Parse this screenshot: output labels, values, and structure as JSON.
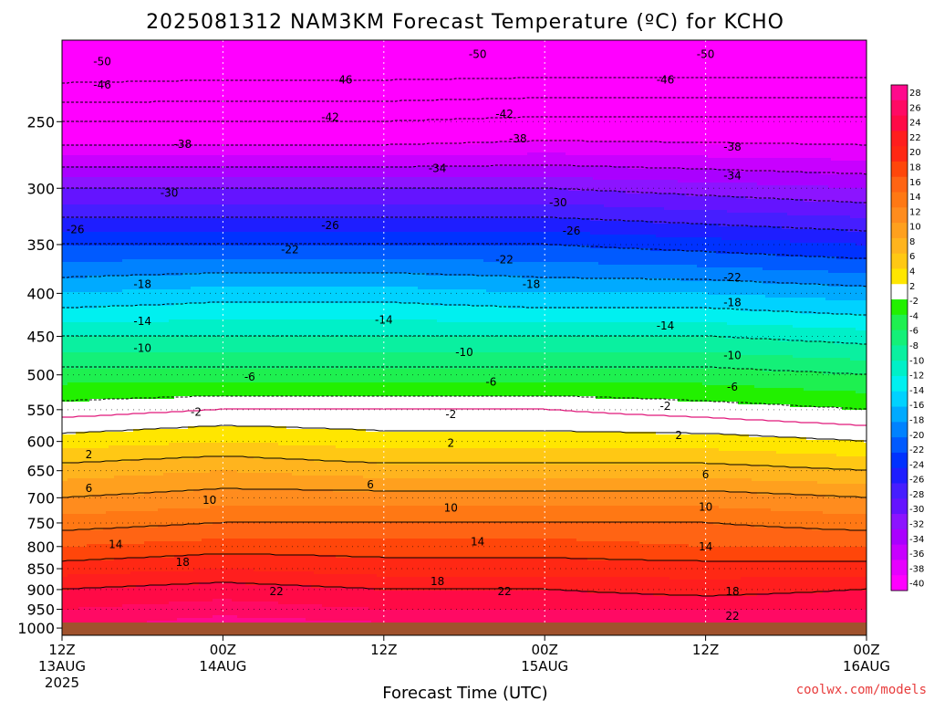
{
  "chart_data": {
    "type": "heatmap",
    "title": "2025081312 NAM3KM Forecast Temperature (ºC) for KCHO",
    "xlabel": "Forecast Time (UTC)",
    "credit": "coolwx.com/models",
    "credit_color": "#e83c3c",
    "y_ticks": [
      "250",
      "300",
      "350",
      "400",
      "450",
      "500",
      "550",
      "600",
      "650",
      "700",
      "750",
      "800",
      "850",
      "900",
      "950",
      "1000"
    ],
    "y_tick_values": [
      250,
      300,
      350,
      400,
      450,
      500,
      550,
      600,
      650,
      700,
      750,
      800,
      850,
      900,
      950,
      1000
    ],
    "ylim": [
      200,
      1020
    ],
    "yscale": "log",
    "xlim": [
      0,
      60
    ],
    "x_ticks": [
      {
        "hour": 0,
        "label": "12Z",
        "label2": "13AUG",
        "label3": "2025"
      },
      {
        "hour": 12,
        "label": "00Z",
        "label2": "14AUG",
        "label3": ""
      },
      {
        "hour": 24,
        "label": "12Z",
        "label2": "",
        "label3": ""
      },
      {
        "hour": 36,
        "label": "00Z",
        "label2": "15AUG",
        "label3": ""
      },
      {
        "hour": 48,
        "label": "12Z",
        "label2": "",
        "label3": ""
      },
      {
        "hour": 60,
        "label": "00Z",
        "label2": "16AUG",
        "label3": ""
      }
    ],
    "colorbar_labels": [
      "28",
      "26",
      "24",
      "22",
      "20",
      "18",
      "16",
      "14",
      "12",
      "10",
      "8",
      "6",
      "4",
      "2",
      "-2",
      "-4",
      "-6",
      "-8",
      "-10",
      "-12",
      "-14",
      "-16",
      "-18",
      "-20",
      "-22",
      "-24",
      "-26",
      "-28",
      "-30",
      "-32",
      "-34",
      "-36",
      "-38",
      "-40"
    ],
    "colorbar_colors": [
      "#ff0a8c",
      "#ff0a64",
      "#ff0a46",
      "#ff1e1e",
      "#ff2814",
      "#ff460a",
      "#ff6414",
      "#ff7814",
      "#ff8c1e",
      "#ffa01e",
      "#ffb41e",
      "#ffc814",
      "#ffe600",
      "#ffffff",
      "#22f000",
      "#1ef050",
      "#14f078",
      "#0af0a0",
      "#00f0c8",
      "#00f0f0",
      "#00d2ff",
      "#00aaff",
      "#0082ff",
      "#005aff",
      "#0032ff",
      "#1e1eff",
      "#461eff",
      "#6414ff",
      "#8c14ff",
      "#aa00ff",
      "#c800ff",
      "#e600ff",
      "#ff00ff"
    ],
    "surface_pressure": 985,
    "surface_color": "#a0522d",
    "profiles": [
      {
        "hour": 0,
        "points": [
          [
            200,
            -58
          ],
          [
            250,
            -42
          ],
          [
            300,
            -30
          ],
          [
            350,
            -22
          ],
          [
            400,
            -16
          ],
          [
            450,
            -10
          ],
          [
            500,
            -5
          ],
          [
            550,
            -1
          ],
          [
            600,
            3
          ],
          [
            650,
            7
          ],
          [
            700,
            10
          ],
          [
            750,
            13
          ],
          [
            800,
            16
          ],
          [
            850,
            19
          ],
          [
            900,
            22
          ],
          [
            950,
            24
          ],
          [
            985,
            25
          ]
        ]
      },
      {
        "hour": 12,
        "points": [
          [
            200,
            -57
          ],
          [
            250,
            -42
          ],
          [
            300,
            -30
          ],
          [
            350,
            -22
          ],
          [
            400,
            -15
          ],
          [
            450,
            -10
          ],
          [
            500,
            -5
          ],
          [
            550,
            0
          ],
          [
            600,
            4
          ],
          [
            650,
            8
          ],
          [
            700,
            11
          ],
          [
            750,
            14
          ],
          [
            800,
            17
          ],
          [
            850,
            20
          ],
          [
            900,
            23
          ],
          [
            950,
            25
          ],
          [
            985,
            27
          ]
        ]
      },
      {
        "hour": 24,
        "points": [
          [
            200,
            -57
          ],
          [
            250,
            -42
          ],
          [
            300,
            -30
          ],
          [
            350,
            -22
          ],
          [
            400,
            -15
          ],
          [
            450,
            -10
          ],
          [
            500,
            -5
          ],
          [
            550,
            0
          ],
          [
            600,
            3
          ],
          [
            650,
            7
          ],
          [
            700,
            11
          ],
          [
            750,
            14
          ],
          [
            800,
            17
          ],
          [
            850,
            19
          ],
          [
            900,
            22
          ],
          [
            950,
            24
          ],
          [
            985,
            26
          ]
        ]
      },
      {
        "hour": 36,
        "points": [
          [
            200,
            -57
          ],
          [
            250,
            -41
          ],
          [
            300,
            -30
          ],
          [
            350,
            -22
          ],
          [
            400,
            -16
          ],
          [
            450,
            -10
          ],
          [
            500,
            -5
          ],
          [
            550,
            0
          ],
          [
            600,
            3
          ],
          [
            650,
            7
          ],
          [
            700,
            11
          ],
          [
            750,
            14
          ],
          [
            800,
            17
          ],
          [
            850,
            19
          ],
          [
            900,
            22
          ],
          [
            950,
            24
          ],
          [
            985,
            26
          ]
        ]
      },
      {
        "hour": 48,
        "points": [
          [
            200,
            -57
          ],
          [
            250,
            -41
          ],
          [
            300,
            -31
          ],
          [
            350,
            -23
          ],
          [
            400,
            -16
          ],
          [
            450,
            -10
          ],
          [
            500,
            -5
          ],
          [
            550,
            -1
          ],
          [
            600,
            3
          ],
          [
            650,
            7
          ],
          [
            700,
            11
          ],
          [
            750,
            14
          ],
          [
            800,
            16
          ],
          [
            850,
            19
          ],
          [
            900,
            21
          ],
          [
            950,
            24
          ],
          [
            985,
            26
          ]
        ]
      },
      {
        "hour": 60,
        "points": [
          [
            200,
            -57
          ],
          [
            250,
            -41
          ],
          [
            300,
            -32
          ],
          [
            350,
            -24
          ],
          [
            400,
            -17
          ],
          [
            450,
            -11
          ],
          [
            500,
            -6
          ],
          [
            550,
            -2
          ],
          [
            600,
            2
          ],
          [
            650,
            6
          ],
          [
            700,
            10
          ],
          [
            750,
            13
          ],
          [
            800,
            16
          ],
          [
            850,
            19
          ],
          [
            900,
            22
          ],
          [
            950,
            24
          ],
          [
            985,
            26
          ]
        ]
      }
    ],
    "contour_labels": [
      {
        "text": "-50",
        "hour": 3,
        "p": 212
      },
      {
        "text": "-50",
        "hour": 31,
        "p": 208
      },
      {
        "text": "-50",
        "hour": 48,
        "p": 208
      },
      {
        "text": "-46",
        "hour": 3,
        "p": 226
      },
      {
        "text": "-46",
        "hour": 21,
        "p": 223
      },
      {
        "text": "-46",
        "hour": 45,
        "p": 223
      },
      {
        "text": "-42",
        "hour": 20,
        "p": 247
      },
      {
        "text": "-42",
        "hour": 33,
        "p": 245
      },
      {
        "text": "-38",
        "hour": 9,
        "p": 266
      },
      {
        "text": "-38",
        "hour": 34,
        "p": 262
      },
      {
        "text": "-38",
        "hour": 50,
        "p": 268
      },
      {
        "text": "-34",
        "hour": 28,
        "p": 284
      },
      {
        "text": "-34",
        "hour": 50,
        "p": 290
      },
      {
        "text": "-30",
        "hour": 8,
        "p": 304
      },
      {
        "text": "-30",
        "hour": 37,
        "p": 312
      },
      {
        "text": "-26",
        "hour": 1,
        "p": 336
      },
      {
        "text": "-26",
        "hour": 20,
        "p": 332
      },
      {
        "text": "-26",
        "hour": 38,
        "p": 337
      },
      {
        "text": "-22",
        "hour": 17,
        "p": 355
      },
      {
        "text": "-22",
        "hour": 33,
        "p": 365
      },
      {
        "text": "-22",
        "hour": 50,
        "p": 383
      },
      {
        "text": "-18",
        "hour": 6,
        "p": 390
      },
      {
        "text": "-18",
        "hour": 35,
        "p": 390
      },
      {
        "text": "-18",
        "hour": 50,
        "p": 410
      },
      {
        "text": "-14",
        "hour": 6,
        "p": 432
      },
      {
        "text": "-14",
        "hour": 24,
        "p": 430
      },
      {
        "text": "-14",
        "hour": 45,
        "p": 437
      },
      {
        "text": "-10",
        "hour": 6,
        "p": 465
      },
      {
        "text": "-10",
        "hour": 30,
        "p": 470
      },
      {
        "text": "-10",
        "hour": 50,
        "p": 474
      },
      {
        "text": "-6",
        "hour": 14,
        "p": 503
      },
      {
        "text": "-6",
        "hour": 32,
        "p": 510
      },
      {
        "text": "-6",
        "hour": 50,
        "p": 517
      },
      {
        "text": "-2",
        "hour": 10,
        "p": 554
      },
      {
        "text": "-2",
        "hour": 29,
        "p": 557
      },
      {
        "text": "-2",
        "hour": 45,
        "p": 545
      },
      {
        "text": "2",
        "hour": 2,
        "p": 622
      },
      {
        "text": "2",
        "hour": 29,
        "p": 603
      },
      {
        "text": "2",
        "hour": 46,
        "p": 590
      },
      {
        "text": "6",
        "hour": 2,
        "p": 682
      },
      {
        "text": "6",
        "hour": 23,
        "p": 675
      },
      {
        "text": "6",
        "hour": 48,
        "p": 657
      },
      {
        "text": "10",
        "hour": 11,
        "p": 705
      },
      {
        "text": "10",
        "hour": 29,
        "p": 720
      },
      {
        "text": "10",
        "hour": 48,
        "p": 718
      },
      {
        "text": "14",
        "hour": 4,
        "p": 795
      },
      {
        "text": "14",
        "hour": 31,
        "p": 790
      },
      {
        "text": "14",
        "hour": 48,
        "p": 800
      },
      {
        "text": "18",
        "hour": 9,
        "p": 835
      },
      {
        "text": "18",
        "hour": 28,
        "p": 880
      },
      {
        "text": "18",
        "hour": 50,
        "p": 905
      },
      {
        "text": "22",
        "hour": 16,
        "p": 905
      },
      {
        "text": "22",
        "hour": 33,
        "p": 905
      },
      {
        "text": "22",
        "hour": 50,
        "p": 968
      }
    ]
  }
}
